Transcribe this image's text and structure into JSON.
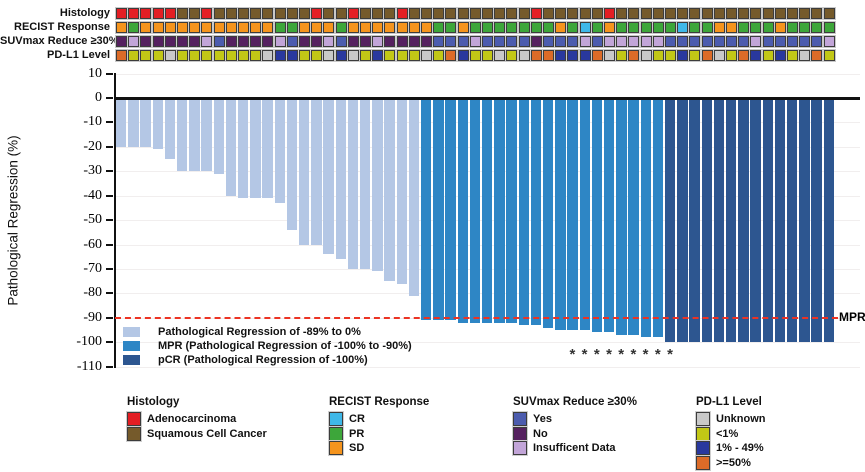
{
  "annotation_tracks": {
    "tracks": [
      {
        "key": "histology",
        "label": "Histology",
        "palette": {
          "A": "#e31e24",
          "S": "#755a2b"
        },
        "values": [
          "A",
          "A",
          "A",
          "A",
          "A",
          "S",
          "S",
          "A",
          "S",
          "S",
          "S",
          "S",
          "S",
          "S",
          "S",
          "S",
          "A",
          "S",
          "S",
          "A",
          "S",
          "S",
          "S",
          "A",
          "S",
          "S",
          "S",
          "S",
          "S",
          "S",
          "S",
          "S",
          "S",
          "S",
          "A",
          "S",
          "S",
          "S",
          "S",
          "S",
          "A",
          "S",
          "S",
          "S",
          "S",
          "S",
          "S",
          "S",
          "S",
          "S",
          "S",
          "S",
          "S",
          "S",
          "S",
          "S",
          "S",
          "S",
          "S"
        ]
      },
      {
        "key": "recist-response",
        "label": "RECIST Response",
        "palette": {
          "CR": "#3fb8e8",
          "PR": "#3da63a",
          "SD": "#f5941d"
        },
        "values": [
          "SD",
          "PR",
          "SD",
          "SD",
          "SD",
          "SD",
          "SD",
          "SD",
          "SD",
          "SD",
          "SD",
          "SD",
          "SD",
          "PR",
          "PR",
          "SD",
          "SD",
          "SD",
          "PR",
          "SD",
          "SD",
          "SD",
          "SD",
          "SD",
          "SD",
          "SD",
          "PR",
          "PR",
          "SD",
          "PR",
          "PR",
          "PR",
          "PR",
          "PR",
          "PR",
          "PR",
          "SD",
          "PR",
          "CR",
          "PR",
          "SD",
          "PR",
          "PR",
          "PR",
          "PR",
          "PR",
          "CR",
          "PR",
          "PR",
          "SD",
          "SD",
          "PR",
          "PR",
          "PR",
          "SD",
          "PR",
          "PR",
          "PR",
          "PR"
        ]
      },
      {
        "key": "suvmax-reduce",
        "label": "SUVmax Reduce ≥30%",
        "palette": {
          "Yes": "#4c5cae",
          "No": "#55215f",
          "ID": "#c2a5d8"
        },
        "values": [
          "No",
          "ID",
          "No",
          "No",
          "No",
          "No",
          "No",
          "ID",
          "Yes",
          "No",
          "No",
          "No",
          "No",
          "ID",
          "Yes",
          "No",
          "No",
          "ID",
          "Yes",
          "No",
          "No",
          "ID",
          "No",
          "No",
          "No",
          "No",
          "Yes",
          "Yes",
          "Yes",
          "ID",
          "Yes",
          "Yes",
          "Yes",
          "Yes",
          "No",
          "Yes",
          "Yes",
          "Yes",
          "ID",
          "Yes",
          "ID",
          "ID",
          "ID",
          "ID",
          "ID",
          "Yes",
          "Yes",
          "Yes",
          "Yes",
          "Yes",
          "Yes",
          "Yes",
          "ID",
          "Yes",
          "Yes",
          "Yes",
          "Yes",
          "Yes",
          "ID"
        ]
      },
      {
        "key": "pdl1-level",
        "label": "PD-L1 Level",
        "palette": {
          "unk": "#c9c9c9",
          "lt1": "#c2c716",
          "mid": "#29389e",
          "ge50": "#dc6b28"
        },
        "values": [
          "ge50",
          "lt1",
          "lt1",
          "lt1",
          "unk",
          "lt1",
          "lt1",
          "lt1",
          "lt1",
          "lt1",
          "lt1",
          "lt1",
          "unk",
          "mid",
          "mid",
          "lt1",
          "lt1",
          "unk",
          "mid",
          "unk",
          "lt1",
          "mid",
          "lt1",
          "lt1",
          "lt1",
          "unk",
          "lt1",
          "ge50",
          "mid",
          "lt1",
          "lt1",
          "unk",
          "lt1",
          "unk",
          "ge50",
          "ge50",
          "mid",
          "mid",
          "mid",
          "ge50",
          "unk",
          "lt1",
          "ge50",
          "unk",
          "lt1",
          "lt1",
          "mid",
          "lt1",
          "ge50",
          "unk",
          "lt1",
          "ge50",
          "mid",
          "lt1",
          "mid",
          "lt1",
          "unk",
          "ge50",
          "lt1"
        ]
      }
    ]
  },
  "chart_data": {
    "type": "bar",
    "title": "",
    "xlabel": "",
    "ylabel": "Pathological Regression (%)",
    "ylim": [
      -110,
      10
    ],
    "ytick_labels": [
      "10",
      "0",
      "-10",
      "-20",
      "-30",
      "-40",
      "-50",
      "-60",
      "-70",
      "-80",
      "-90",
      "-100",
      "-110"
    ],
    "ytick_values": [
      10,
      0,
      -10,
      -20,
      -30,
      -40,
      -50,
      -60,
      -70,
      -80,
      -90,
      -100,
      -110
    ],
    "grid": "horizontal-faint",
    "values": [
      -20,
      -20,
      -20,
      -21,
      -25,
      -30,
      -30,
      -30,
      -31,
      -40,
      -41,
      -41,
      -41,
      -43,
      -54,
      -60,
      -60,
      -64,
      -66,
      -70,
      -70,
      -71,
      -75,
      -76,
      -81,
      -91,
      -91,
      -91,
      -92,
      -92,
      -92,
      -92,
      -92,
      -93,
      -93,
      -94,
      -95,
      -95,
      -95,
      -96,
      -96,
      -97,
      -97,
      -98,
      -98,
      -100,
      -100,
      -100,
      -100,
      -100,
      -100,
      -100,
      -100,
      -100,
      -100,
      -100,
      -100,
      -100,
      -100
    ],
    "bar_colors": {
      "regression": "#b4c7e5",
      "mpr": "#2e86c5",
      "pcr": "#2d5690"
    },
    "mpr_line": {
      "value": -90,
      "label": "MPR",
      "color": "#ec3323",
      "style": "dashed"
    },
    "asterisk_symbol": "*",
    "asterisk_bar_indices": [
      37,
      38,
      39,
      40,
      41,
      42,
      43,
      44,
      45
    ],
    "legend_position": "lower-left-inside",
    "inplot_legend": [
      {
        "key": "regression",
        "color": "#b4c7e5",
        "label": "Pathological Regression of -89% to 0%"
      },
      {
        "key": "mpr",
        "color": "#2e86c5",
        "label": "MPR (Pathological Regression of -100% to -90%)"
      },
      {
        "key": "pcr",
        "color": "#2d5690",
        "label": "pCR (Pathological Regression of -100%)"
      }
    ]
  },
  "bottom_legend": {
    "groups": [
      {
        "title": "Histology",
        "x": 127,
        "items": [
          {
            "label": "Adenocarcinoma",
            "color": "#e31e24"
          },
          {
            "label": "Squamous Cell Cancer",
            "color": "#755a2b"
          }
        ]
      },
      {
        "title": "RECIST Response",
        "x": 329,
        "items": [
          {
            "label": "CR",
            "color": "#3fb8e8"
          },
          {
            "label": "PR",
            "color": "#3da63a"
          },
          {
            "label": "SD",
            "color": "#f5941d"
          }
        ]
      },
      {
        "title": "SUVmax Reduce ≥30%",
        "x": 513,
        "items": [
          {
            "label": "Yes",
            "color": "#4c5cae"
          },
          {
            "label": "No",
            "color": "#55215f"
          },
          {
            "label": "Insufficent Data",
            "color": "#c2a5d8"
          }
        ]
      },
      {
        "title": "PD-L1 Level",
        "x": 696,
        "items": [
          {
            "label": "Unknown",
            "color": "#c9c9c9"
          },
          {
            "label": "<1%",
            "color": "#c2c716"
          },
          {
            "label": "1% - 49%",
            "color": "#29389e"
          },
          {
            "label": ">=50%",
            "color": "#dc6b28"
          }
        ]
      }
    ]
  }
}
